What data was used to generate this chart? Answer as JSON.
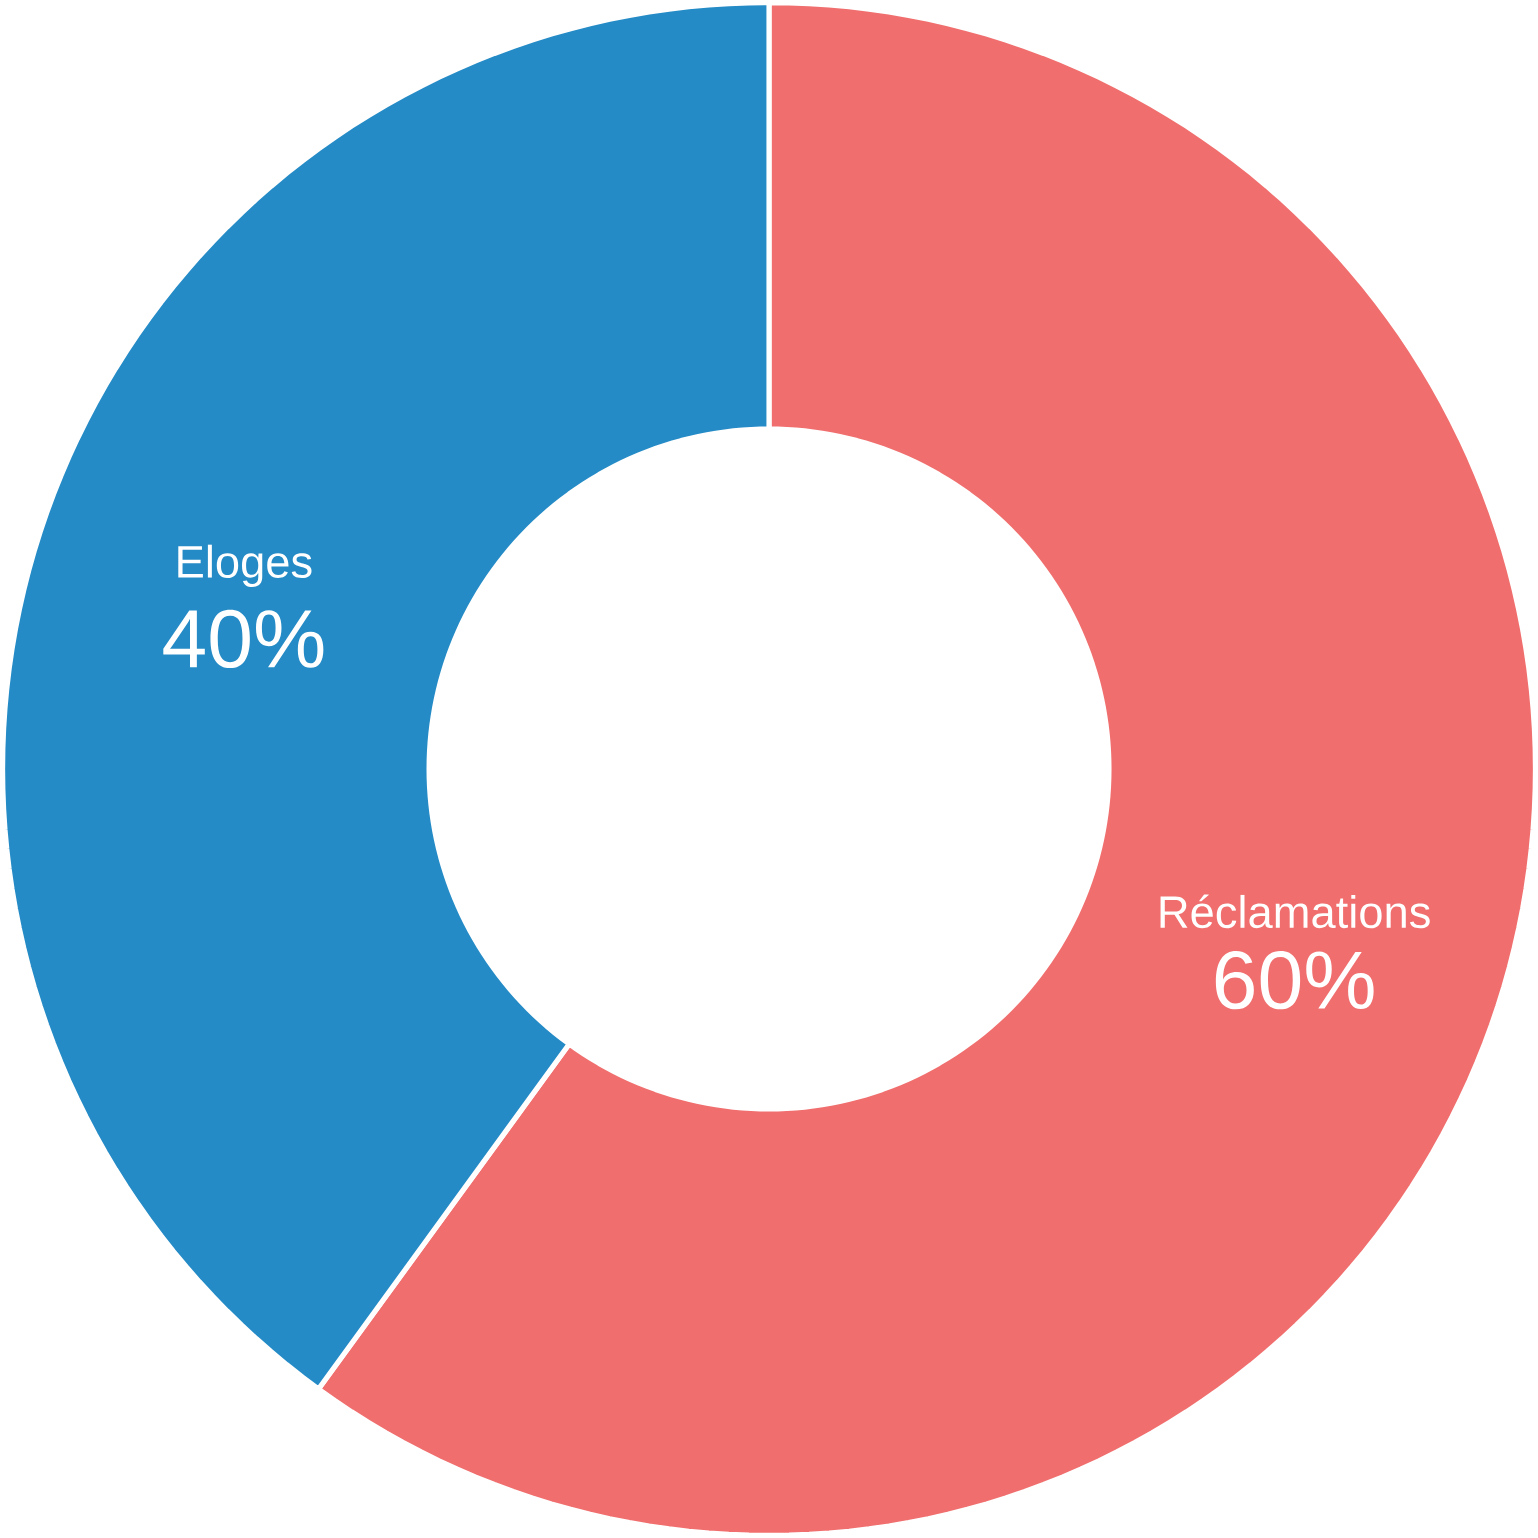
{
  "chart_data": {
    "type": "donut",
    "categories": [
      "Réclamations",
      "Eloges"
    ],
    "values": [
      60,
      40
    ],
    "colors": [
      "#f06f6e",
      "#258bc6"
    ],
    "value_labels": [
      "60%",
      "40%"
    ]
  }
}
